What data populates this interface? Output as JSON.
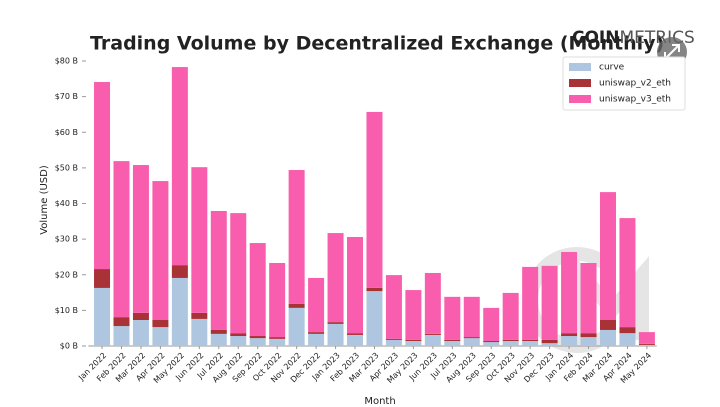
{
  "brand": {
    "bold": "COIN",
    "light": "METRICS"
  },
  "chart_data": {
    "type": "stacked_bar",
    "title": "Trading Volume by Decentralized Exchange (Monthly)",
    "x_label": "Month",
    "y_label": "Volume (USD)",
    "categories": [
      "Jan 2022",
      "Feb 2022",
      "Mar 2022",
      "Apr 2022",
      "May 2022",
      "Jun 2022",
      "Jul 2022",
      "Aug 2022",
      "Sep 2022",
      "Oct 2022",
      "Nov 2022",
      "Dec 2022",
      "Jan 2023",
      "Feb 2023",
      "Mar 2023",
      "Apr 2023",
      "May 2023",
      "Jun 2023",
      "Jul 2023",
      "Aug 2023",
      "Sep 2023",
      "Oct 2023",
      "Nov 2023",
      "Dec 2023",
      "Jan 2024",
      "Feb 2024",
      "Mar 2024",
      "Apr 2024",
      "May 2024"
    ],
    "series": [
      {
        "name": "curve",
        "color": "#aec6e0",
        "values": [
          16.3,
          5.6,
          7.3,
          5.3,
          19.1,
          7.6,
          3.4,
          2.8,
          2.2,
          2.0,
          10.7,
          3.4,
          6.2,
          3.1,
          15.4,
          1.7,
          1.4,
          3.1,
          1.4,
          2.2,
          1.1,
          1.4,
          1.4,
          0.8,
          2.8,
          2.5,
          4.5,
          3.6,
          0.3
        ]
      },
      {
        "name": "uniswap_v2_eth",
        "color": "#a83236",
        "values": [
          5.3,
          2.5,
          2.0,
          2.0,
          3.6,
          1.7,
          1.1,
          0.8,
          0.6,
          0.5,
          1.1,
          0.5,
          0.5,
          0.5,
          0.9,
          0.3,
          0.3,
          0.3,
          0.3,
          0.3,
          0.3,
          0.3,
          0.3,
          0.9,
          0.8,
          1.1,
          2.8,
          1.7,
          0.3
        ]
      },
      {
        "name": "uniswap_v3_eth",
        "color": "#f95eae",
        "values": [
          52.5,
          43.8,
          41.5,
          39.0,
          55.6,
          40.9,
          33.4,
          33.7,
          26.1,
          20.8,
          37.6,
          15.2,
          25.0,
          27.0,
          49.4,
          17.9,
          14.0,
          17.1,
          12.1,
          11.3,
          9.3,
          13.2,
          20.5,
          20.8,
          22.8,
          19.7,
          35.9,
          30.6,
          3.3
        ]
      }
    ],
    "ylim": [
      0,
      80
    ],
    "yticks": [
      {
        "value": 0,
        "label": "$0 B"
      },
      {
        "value": 10,
        "label": "$10 B"
      },
      {
        "value": 20,
        "label": "$20 B"
      },
      {
        "value": 30,
        "label": "$30 B"
      },
      {
        "value": 40,
        "label": "$40 B"
      },
      {
        "value": 50,
        "label": "$50 B"
      },
      {
        "value": 60,
        "label": "$60 B"
      },
      {
        "value": 70,
        "label": "$70 B"
      },
      {
        "value": 80,
        "label": "$80 B"
      }
    ],
    "legend": "upper right"
  }
}
